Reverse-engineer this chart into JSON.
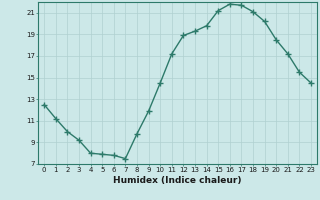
{
  "x": [
    0,
    1,
    2,
    3,
    4,
    5,
    6,
    7,
    8,
    9,
    10,
    11,
    12,
    13,
    14,
    15,
    16,
    17,
    18,
    19,
    20,
    21,
    22,
    23
  ],
  "y": [
    12.5,
    11.2,
    10.0,
    9.2,
    8.0,
    7.9,
    7.8,
    7.5,
    9.8,
    11.9,
    14.5,
    17.2,
    18.9,
    19.3,
    19.8,
    21.2,
    21.8,
    21.7,
    21.1,
    20.2,
    18.5,
    17.2,
    15.5,
    14.5
  ],
  "line_color": "#2d7a6a",
  "bg_color": "#cce8e8",
  "grid_color": "#b0d0d0",
  "xlabel": "Humidex (Indice chaleur)",
  "xlim_min": -0.5,
  "xlim_max": 23.5,
  "ylim_min": 7,
  "ylim_max": 22,
  "yticks": [
    7,
    9,
    11,
    13,
    15,
    17,
    19,
    21
  ],
  "xticks": [
    0,
    1,
    2,
    3,
    4,
    5,
    6,
    7,
    8,
    9,
    10,
    11,
    12,
    13,
    14,
    15,
    16,
    17,
    18,
    19,
    20,
    21,
    22,
    23
  ],
  "marker": "+",
  "markersize": 4,
  "markeredgewidth": 1.0,
  "linewidth": 1.0,
  "tick_fontsize": 5.0,
  "xlabel_fontsize": 6.5
}
